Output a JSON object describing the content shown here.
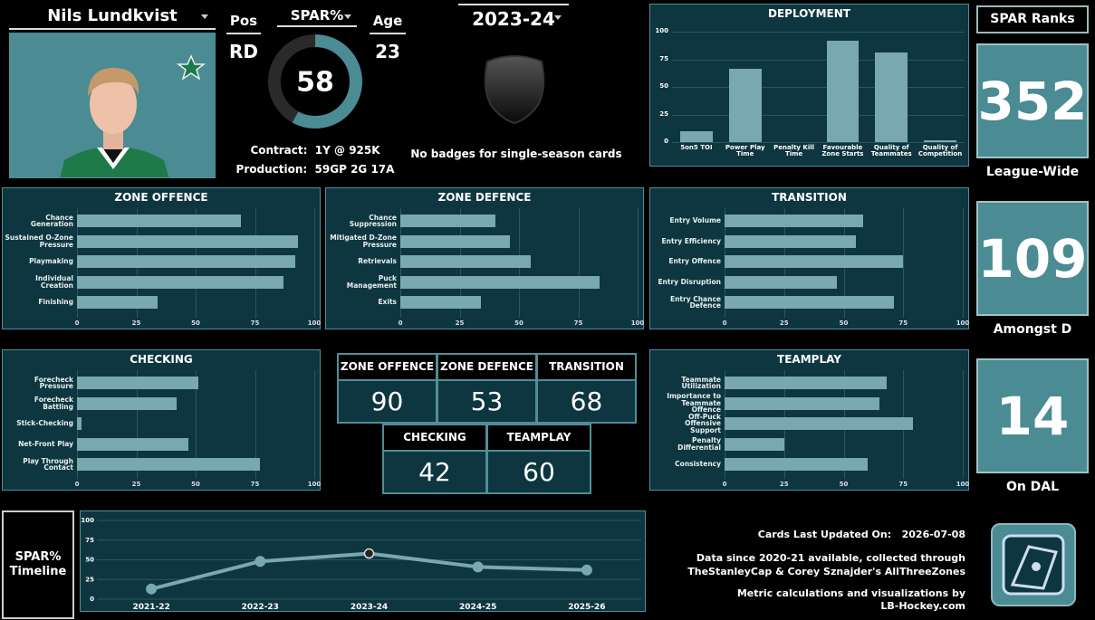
{
  "player": {
    "name": "Nils Lundkvist",
    "pos_label": "Pos",
    "pos": "RD",
    "age_label": "Age",
    "age": 23,
    "contract_label": "Contract:",
    "contract": "1Y @ 925K",
    "production_label": "Production:",
    "production": "59GP 2G 17A"
  },
  "spar": {
    "label": "SPAR%",
    "value": 58
  },
  "season": {
    "label": "2023-24",
    "badges_note": "No badges for single-season cards"
  },
  "ranks": {
    "title": "SPAR Ranks",
    "items": [
      {
        "value": 352,
        "label": "League-Wide"
      },
      {
        "value": 109,
        "label": "Amongst D"
      },
      {
        "value": 14,
        "label": "On DAL"
      }
    ]
  },
  "summary": {
    "rows": [
      {
        "headers": [
          "ZONE OFFENCE",
          "ZONE DEFENCE",
          "TRANSITION"
        ],
        "values": [
          90,
          53,
          68
        ]
      },
      {
        "headers": [
          "CHECKING",
          "TEAMPLAY"
        ],
        "values": [
          42,
          60
        ]
      }
    ]
  },
  "timeline_label": "SPAR% Timeline",
  "footer": {
    "updated_label": "Cards Last Updated On:",
    "updated": "2026-07-08",
    "lines": [
      "Data since 2020-21 available, collected through",
      "TheStanleyCap & Corey Sznajder's AllThreeZones",
      "Metric calculations and visualizations by",
      "LB-Hockey.com"
    ]
  },
  "chart_data": [
    {
      "type": "bar",
      "title": "DEPLOYMENT",
      "categories": [
        "5on5 TOI",
        "Power Play Time",
        "Penalty Kill Time",
        "Favourable Zone Starts",
        "Quality of Teammates",
        "Quality of Competition"
      ],
      "values": [
        10,
        66,
        0,
        92,
        81,
        2
      ],
      "color": "#7aa8b0",
      "ylim": [
        0,
        100
      ],
      "yticks": [
        0,
        25,
        50,
        75,
        100
      ]
    },
    {
      "type": "hbar",
      "title": "ZONE OFFENCE",
      "categories": [
        "Chance Generation",
        "Sustained O-Zone Pressure",
        "Playmaking",
        "Individual Creation",
        "Finishing"
      ],
      "values": [
        69,
        93,
        92,
        87,
        34
      ],
      "color": "#7aa8b0",
      "xlim": [
        0,
        100
      ],
      "xticks": [
        0,
        25,
        50,
        75,
        100
      ]
    },
    {
      "type": "hbar",
      "title": "ZONE DEFENCE",
      "categories": [
        "Chance Suppression",
        "Mitigated D-Zone Pressure",
        "Retrievals",
        "Puck Management",
        "Exits"
      ],
      "values": [
        40,
        46,
        55,
        84,
        34
      ],
      "color": "#7aa8b0",
      "xlim": [
        0,
        100
      ],
      "xticks": [
        0,
        25,
        50,
        75,
        100
      ]
    },
    {
      "type": "hbar",
      "title": "TRANSITION",
      "categories": [
        "Entry Volume",
        "Entry Efficiency",
        "Entry Offence",
        "Entry Disruption",
        "Entry Chance Defence"
      ],
      "values": [
        58,
        55,
        75,
        47,
        71
      ],
      "color": "#7aa8b0",
      "xlim": [
        0,
        100
      ],
      "xticks": [
        0,
        25,
        50,
        75,
        100
      ]
    },
    {
      "type": "hbar",
      "title": "CHECKING",
      "categories": [
        "Forecheck Pressure",
        "Forecheck Battling",
        "Stick-Checking",
        "Net-Front Play",
        "Play Through Contact"
      ],
      "values": [
        51,
        42,
        2,
        47,
        77
      ],
      "color": "#7aa8b0",
      "xlim": [
        0,
        100
      ],
      "xticks": [
        0,
        25,
        50,
        75,
        100
      ]
    },
    {
      "type": "hbar",
      "title": "TEAMPLAY",
      "categories": [
        "Teammate Utilization",
        "Importance to Teammate Offence",
        "Off-Puck Offensive Support",
        "Penalty Differential",
        "Consistency"
      ],
      "values": [
        68,
        65,
        79,
        25,
        60
      ],
      "color": "#7aa8b0",
      "xlim": [
        0,
        100
      ],
      "xticks": [
        0,
        25,
        50,
        75,
        100
      ]
    },
    {
      "type": "line",
      "categories": [
        "2021-22",
        "2022-23",
        "2023-24",
        "2024-25",
        "2025-26"
      ],
      "values": [
        13,
        48,
        58,
        41,
        37
      ],
      "color": "#7aa8b0",
      "ylim": [
        0,
        100
      ],
      "yticks": [
        0,
        25,
        50,
        75,
        100
      ]
    }
  ]
}
